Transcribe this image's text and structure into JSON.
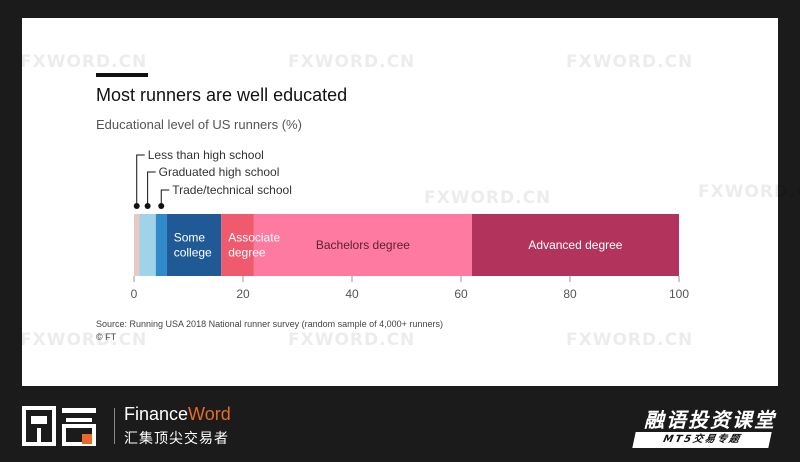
{
  "watermark": "FXWORD.CN",
  "chart_data": {
    "type": "bar",
    "orientation": "horizontal-stacked",
    "title": "Most runners are well educated",
    "subtitle": "Educational level of US runners (%)",
    "xlim": [
      0,
      100
    ],
    "xticks": [
      0,
      20,
      40,
      60,
      80,
      100
    ],
    "series": [
      {
        "name": "Less than high school",
        "value": 1,
        "color": "#e8c9c3"
      },
      {
        "name": "Graduated high school",
        "value": 3,
        "color": "#9ed3e8"
      },
      {
        "name": "Trade/technical school",
        "value": 2,
        "color": "#2f8ac7"
      },
      {
        "name": "Some college",
        "value": 10,
        "color": "#1f5a97"
      },
      {
        "name": "Associate degree",
        "value": 6,
        "color": "#ef5a6e"
      },
      {
        "name": "Bachelors degree",
        "value": 40,
        "color": "#ff7aa0"
      },
      {
        "name": "Advanced degree",
        "value": 38,
        "color": "#b2345c"
      }
    ],
    "inline_labels": [
      {
        "series": "Some college",
        "lines": [
          "Some",
          "college"
        ],
        "color": "#ffffff"
      },
      {
        "series": "Associate degree",
        "lines": [
          "Associate",
          "degree"
        ],
        "color": "#ffffff"
      },
      {
        "series": "Bachelors degree",
        "lines": [
          "Bachelors degree"
        ],
        "color": "#5a1f35"
      },
      {
        "series": "Advanced degree",
        "lines": [
          "Advanced degree"
        ],
        "color": "#ffffff"
      }
    ],
    "callouts": [
      "Less than high school",
      "Graduated high school",
      "Trade/technical school"
    ],
    "source": "Source: Running USA 2018 National runner survey (random sample of 4,000+ runners)",
    "copyright": "© FT"
  },
  "footer": {
    "brand_en_prefix": "Finance",
    "brand_en_accent": "Word",
    "brand_cn": "汇集顶尖交易者",
    "course_title": "融语投资课堂",
    "course_tag": "MT5交易专题"
  }
}
